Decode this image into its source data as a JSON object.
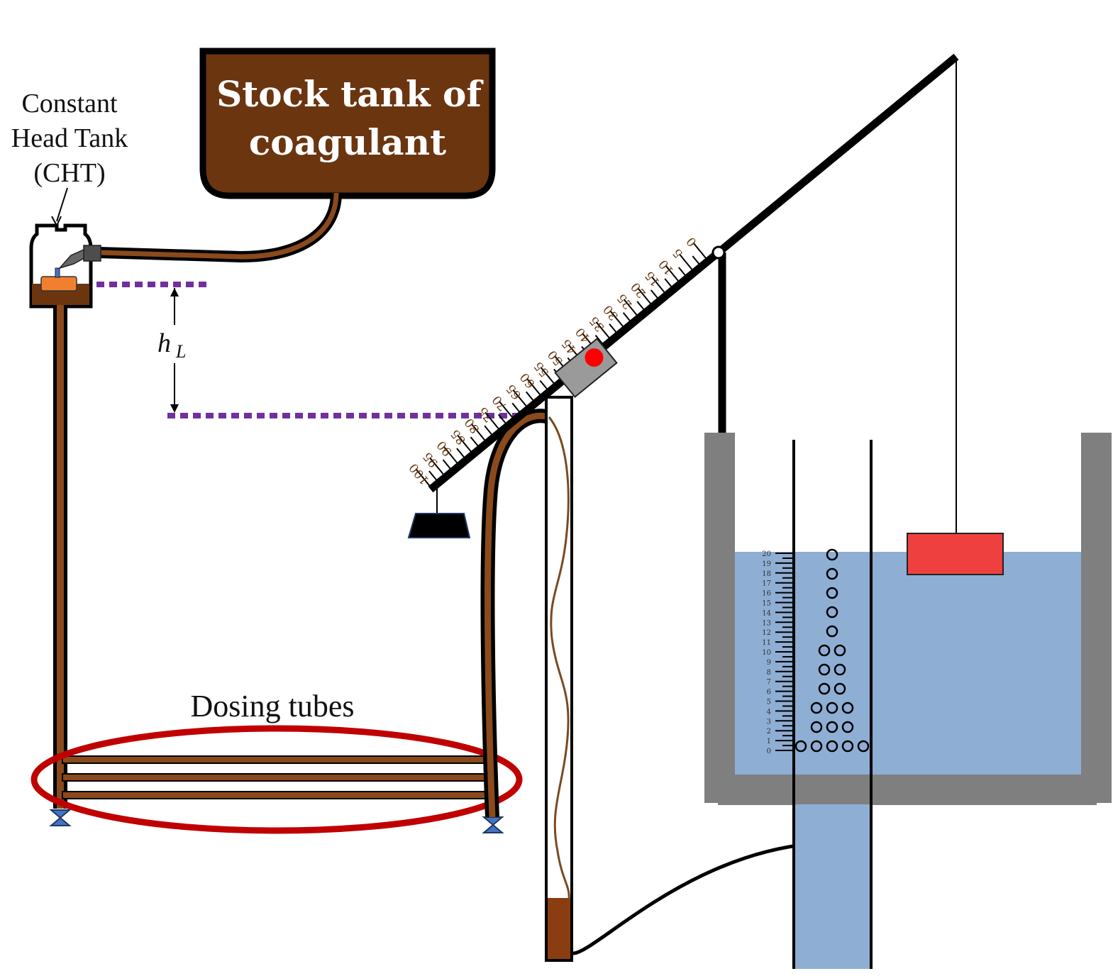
{
  "labels": {
    "cht_line1": "Constant",
    "cht_line2": "Head Tank",
    "cht_line3": "(CHT)",
    "stock_line1": "Stock tank of",
    "stock_line2": "coagulant",
    "head_loss_h": "h",
    "head_loss_sub": "L",
    "dosing_tubes": "Dosing tubes"
  },
  "lever_scale": {
    "min": 0,
    "max": 100,
    "label_step": 5,
    "slider_position": 45,
    "labels": [
      "0",
      "5",
      "10",
      "15",
      "20",
      "25",
      "30",
      "35",
      "40",
      "45",
      "50",
      "55",
      "60",
      "65",
      "70",
      "75",
      "80",
      "85",
      "90",
      "95",
      "100"
    ]
  },
  "water_gauge": {
    "min": 0,
    "max": 20,
    "labels": [
      "0",
      "1",
      "2",
      "3",
      "4",
      "5",
      "6",
      "7",
      "8",
      "9",
      "10",
      "11",
      "12",
      "13",
      "14",
      "15",
      "16",
      "17",
      "18",
      "19",
      "20"
    ]
  },
  "colors": {
    "coagulant": "#6b3510",
    "tube_brown": "#8a4a1c",
    "water": "#8eaed3",
    "wall_gray": "#7f7f7f",
    "float": "#ef4040",
    "dosing_ring": "#c00000",
    "dashed_level": "#7030a0",
    "slider_dot": "#ff0000",
    "float_valve": "#f08030",
    "valve_blue": "#4472c4"
  },
  "icons": {
    "valve": "bowtie-valve-icon",
    "slider": "slider-block-icon",
    "counterweight": "counterweight-icon"
  }
}
